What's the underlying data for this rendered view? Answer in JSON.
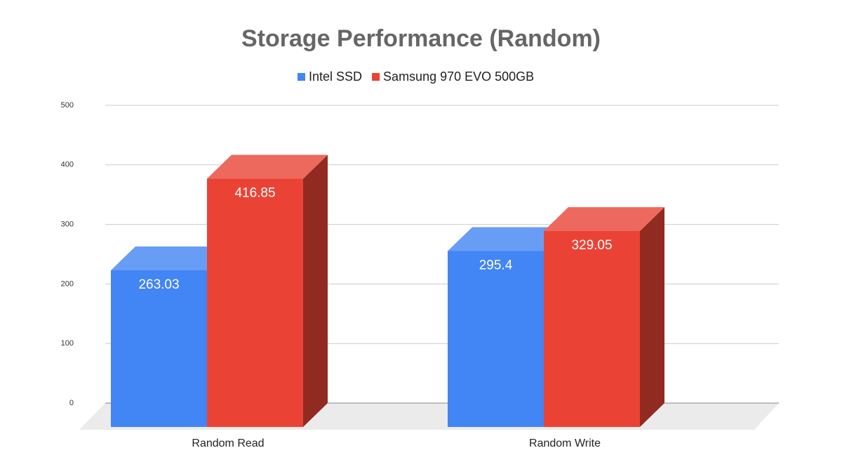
{
  "chart_data": {
    "type": "bar3d",
    "title": "Storage Performance (Random)",
    "categories": [
      "Random Read",
      "Random Write"
    ],
    "series": [
      {
        "name": "Intel SSD",
        "color": "#4285f4",
        "values": [
          263.03,
          295.4
        ]
      },
      {
        "name": "Samsung 970 EVO 500GB",
        "color": "#ea4335",
        "values": [
          416.85,
          329.05
        ]
      }
    ],
    "ylim": [
      0,
      500
    ],
    "yticks": [
      0,
      100,
      200,
      300,
      400,
      500
    ],
    "grid": true,
    "legend": "top"
  }
}
